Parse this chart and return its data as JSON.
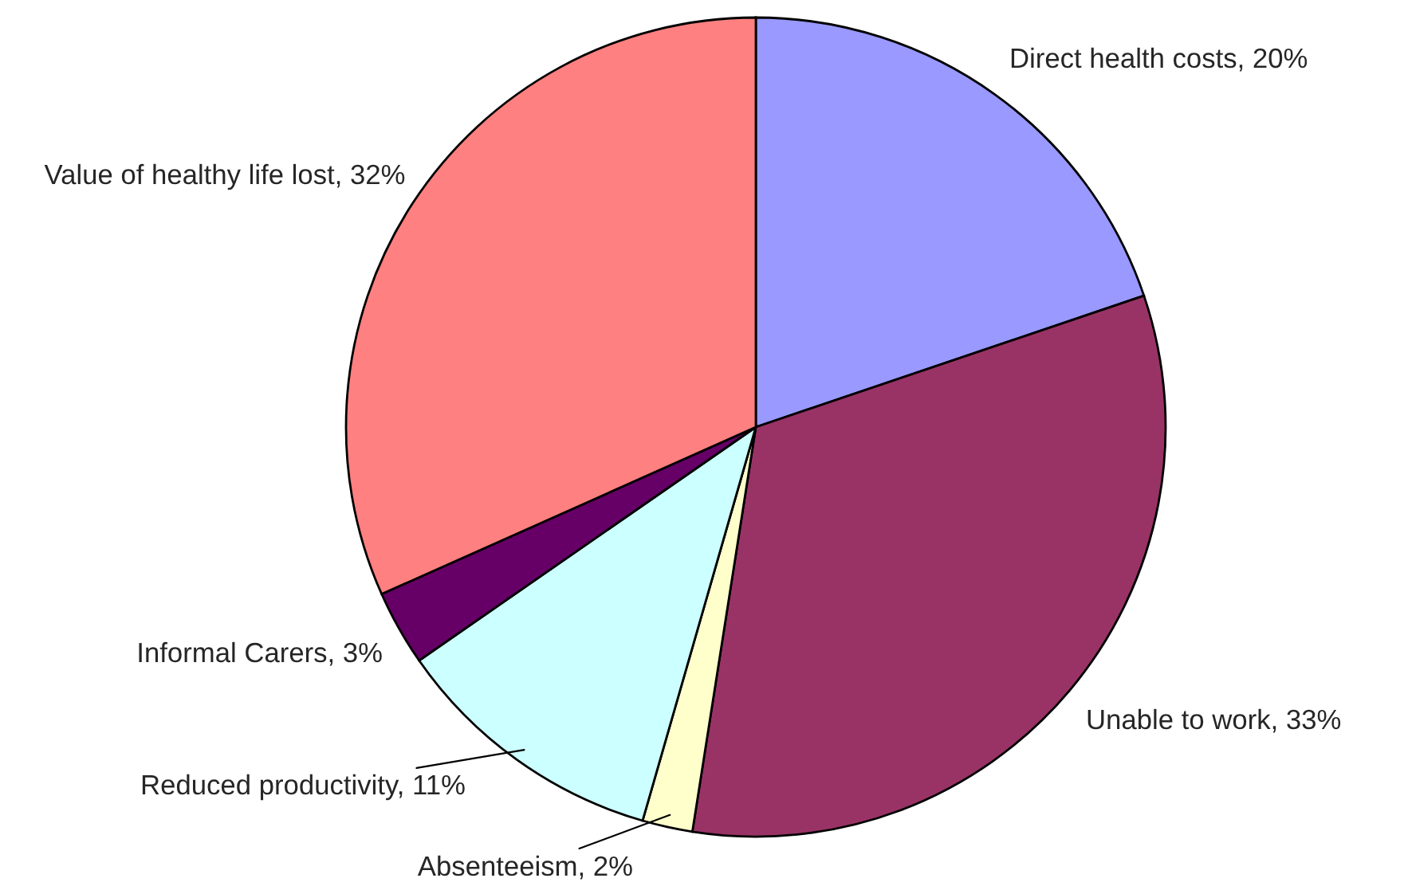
{
  "chart_data": {
    "type": "pie",
    "categories": [
      "Direct health costs",
      "Unable to work",
      "Absenteeism",
      "Reduced productivity",
      "Informal Carers",
      "Value of healthy life lost"
    ],
    "values": [
      20,
      33,
      2,
      11,
      3,
      32
    ],
    "value_labels": [
      "20%",
      "33%",
      "2%",
      "11%",
      "3%",
      "32%"
    ],
    "colors": [
      "#9999ff",
      "#993366",
      "#ffffcc",
      "#ccffff",
      "#660066",
      "#ff8080"
    ],
    "legend": false
  }
}
